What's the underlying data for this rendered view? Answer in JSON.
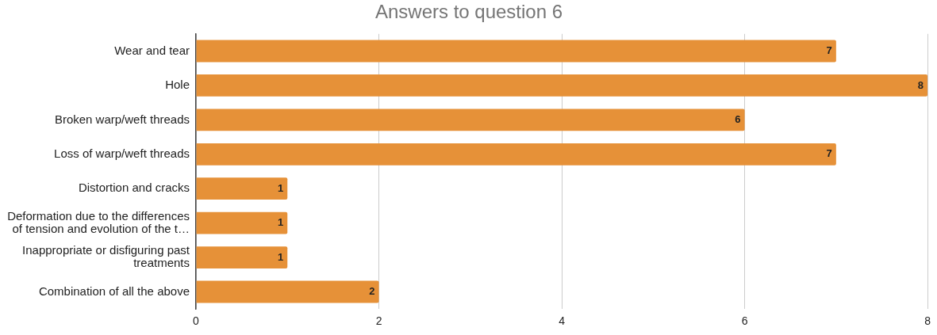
{
  "chart_data": {
    "type": "bar",
    "orientation": "horizontal",
    "title": "Answers to question 6",
    "categories": [
      "Wear and tear",
      "Hole",
      "Broken warp/weft threads",
      "Loss of warp/weft threads",
      "Distortion and cracks",
      "Deformation due to the differences of tension and evolution of the t…",
      "Inappropriate or disfiguring past treatments",
      "Combination of all the above"
    ],
    "values": [
      7,
      8,
      6,
      7,
      1,
      1,
      1,
      2
    ],
    "color": "#e69138",
    "xlim": [
      0,
      8
    ],
    "xticks": [
      0,
      2,
      4,
      6,
      8
    ],
    "grid": "x",
    "data_labels": true
  }
}
